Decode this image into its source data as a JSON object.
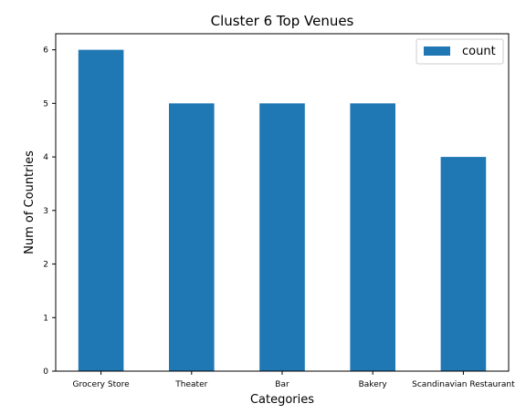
{
  "chart_data": {
    "type": "bar",
    "title": "Cluster 6 Top Venues",
    "xlabel": "Categories",
    "ylabel": "Num of Countries",
    "categories": [
      "Grocery Store",
      "Theater",
      "Bar",
      "Bakery",
      "Scandinavian Restaurant"
    ],
    "series": [
      {
        "name": "count",
        "values": [
          6,
          5,
          5,
          5,
          4
        ]
      }
    ],
    "ylim": [
      0,
      6.3
    ],
    "yticks": [
      0,
      1,
      2,
      3,
      4,
      5,
      6
    ],
    "grid": false,
    "legend_position": "top-right",
    "colors": {
      "bar": "#1f77b4"
    }
  }
}
